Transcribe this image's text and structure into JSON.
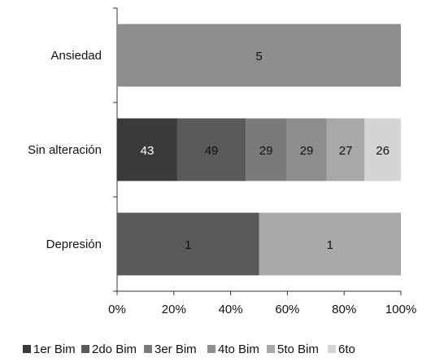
{
  "chart_data": {
    "type": "bar",
    "orientation": "horizontal",
    "stacked": "percent",
    "categories": [
      "Ansiedad",
      "Sin alteración",
      "Depresión"
    ],
    "series": [
      {
        "name": "1er Bim",
        "values": [
          0,
          43,
          0
        ],
        "color": "#3a3a3a"
      },
      {
        "name": "2do Bim",
        "values": [
          0,
          49,
          1
        ],
        "color": "#5a5a5a"
      },
      {
        "name": "3er Bim",
        "values": [
          0,
          29,
          0
        ],
        "color": "#7a7a7a"
      },
      {
        "name": "4to Bim",
        "values": [
          5,
          29,
          0
        ],
        "color": "#8e8e8e"
      },
      {
        "name": "5to Bim",
        "values": [
          0,
          27,
          1
        ],
        "color": "#a8a8a8"
      },
      {
        "name": "6to",
        "values": [
          0,
          26,
          0
        ],
        "color": "#d4d4d4"
      }
    ],
    "xticks": [
      "0%",
      "20%",
      "40%",
      "60%",
      "80%",
      "100%"
    ],
    "xlim": [
      0,
      100
    ],
    "legend_position": "bottom",
    "grid": false
  }
}
